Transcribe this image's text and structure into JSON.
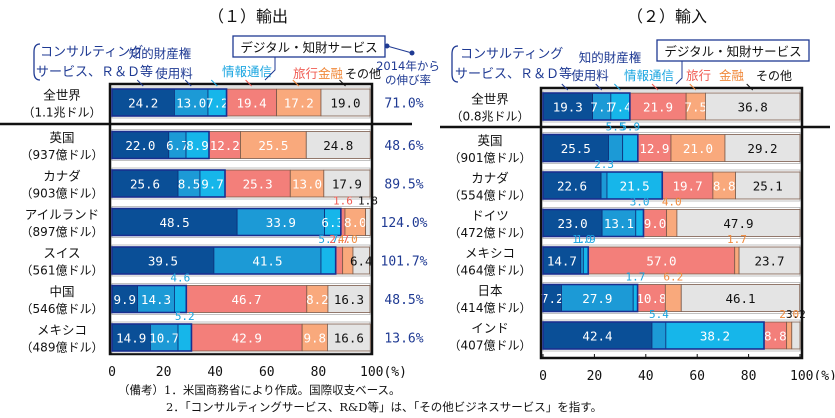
{
  "colors": {
    "consulting": "#0a4f97",
    "ip": "#1c9ad6",
    "ict": "#16b6ea",
    "travel": "#f37f7a",
    "finance": "#f9a97c",
    "other": "#e4e4e4",
    "label_blue": "#1f3a93",
    "label_ict": "#1aa5e0",
    "label_travel": "#f05c53",
    "label_finance": "#f08a3c",
    "frame": "#111111"
  },
  "notes": {
    "prefix": "（備考）",
    "items": [
      "1．米国商務省により作成。国際収支ベース。",
      "2．「コンサルティングサービス、R&D等」は、「その他ビジネスサービス」を指す。"
    ]
  },
  "chart_data": [
    {
      "type": "bar",
      "orientation": "horizontal-stacked-100",
      "title": "（１）輸出",
      "xlabel": "",
      "xticks": [
        "0",
        "20",
        "40",
        "60",
        "80",
        "100(%)"
      ],
      "xlim": [
        0,
        100
      ],
      "legend": {
        "digital_box": "デジタル・知財サービス",
        "consulting": [
          "コンサルティング",
          "サービス、Ｒ＆Ｄ等"
        ],
        "ip": [
          "知的財産権",
          "使用料"
        ],
        "ict": "情報通信",
        "travel": "旅行",
        "finance": "金融",
        "other": "その他",
        "growth_header": [
          "2014年から",
          "の伸び率"
        ]
      },
      "series": [
        "consulting",
        "ip",
        "ict",
        "travel",
        "finance",
        "other"
      ],
      "rows": [
        {
          "name": "全世界",
          "total": "（1.1兆ドル）",
          "values": [
            24.2,
            13.0,
            7.2,
            19.4,
            17.2,
            19.0
          ],
          "growth": "71.0%"
        },
        {
          "name": "英国",
          "total": "（937億ドル）",
          "values": [
            22.0,
            6.7,
            8.9,
            12.2,
            25.5,
            24.8
          ],
          "growth": "48.6%"
        },
        {
          "name": "カナダ",
          "total": "（903億ドル）",
          "values": [
            25.6,
            8.5,
            9.7,
            25.3,
            13.0,
            17.9
          ],
          "growth": "89.5%"
        },
        {
          "name": "アイルランド",
          "total": "（897億ドル）",
          "values": [
            48.5,
            33.9,
            6.3,
            1.6,
            8.0,
            1.8
          ],
          "growth": "124.0%"
        },
        {
          "name": "スイス",
          "total": "（561億ドル）",
          "values": [
            39.5,
            41.5,
            5.7,
            2.7,
            4.0,
            6.4
          ],
          "growth": "101.7%"
        },
        {
          "name": "中国",
          "total": "（546億ドル）",
          "values": [
            9.9,
            14.3,
            4.6,
            46.7,
            8.2,
            16.3
          ],
          "growth": "48.5%"
        },
        {
          "name": "メキシコ",
          "total": "（489億ドル）",
          "values": [
            14.9,
            10.7,
            5.2,
            42.9,
            9.8,
            16.6
          ],
          "growth": "13.6%"
        }
      ]
    },
    {
      "type": "bar",
      "orientation": "horizontal-stacked-100",
      "title": "（２）輸入",
      "xlabel": "",
      "xticks": [
        "0",
        "20",
        "40",
        "60",
        "80",
        "100(%)"
      ],
      "xlim": [
        0,
        100
      ],
      "legend": {
        "digital_box": "デジタル・知財サービス",
        "consulting": [
          "コンサルティング",
          "サービス、Ｒ＆Ｄ等"
        ],
        "ip": [
          "知的財産権",
          "使用料"
        ],
        "ict": "情報通信",
        "travel": "旅行",
        "finance": "金融",
        "other": "その他"
      },
      "series": [
        "consulting",
        "ip",
        "ict",
        "travel",
        "finance",
        "other"
      ],
      "rows": [
        {
          "name": "全世界",
          "total": "（0.8兆ドル）",
          "values": [
            19.3,
            7.1,
            7.4,
            21.9,
            7.5,
            36.8
          ]
        },
        {
          "name": "英国",
          "total": "（901億ドル）",
          "values": [
            25.5,
            5.5,
            5.9,
            12.9,
            21.0,
            29.2
          ]
        },
        {
          "name": "カナダ",
          "total": "（554億ドル）",
          "values": [
            22.6,
            2.3,
            21.5,
            19.7,
            8.8,
            25.1
          ]
        },
        {
          "name": "ドイツ",
          "total": "（472億ドル）",
          "values": [
            23.0,
            13.1,
            3.0,
            9.0,
            4.0,
            47.9
          ]
        },
        {
          "name": "メキシコ",
          "total": "（464億ドル）",
          "values": [
            14.7,
            1.0,
            1.9,
            57.0,
            1.7,
            23.7
          ]
        },
        {
          "name": "日本",
          "total": "（414億ドル）",
          "values": [
            7.2,
            27.9,
            1.7,
            10.8,
            6.2,
            46.1
          ]
        },
        {
          "name": "インド",
          "total": "（407億ドル）",
          "values": [
            42.4,
            5.4,
            38.2,
            8.8,
            2.0,
            3.2
          ]
        }
      ]
    }
  ]
}
